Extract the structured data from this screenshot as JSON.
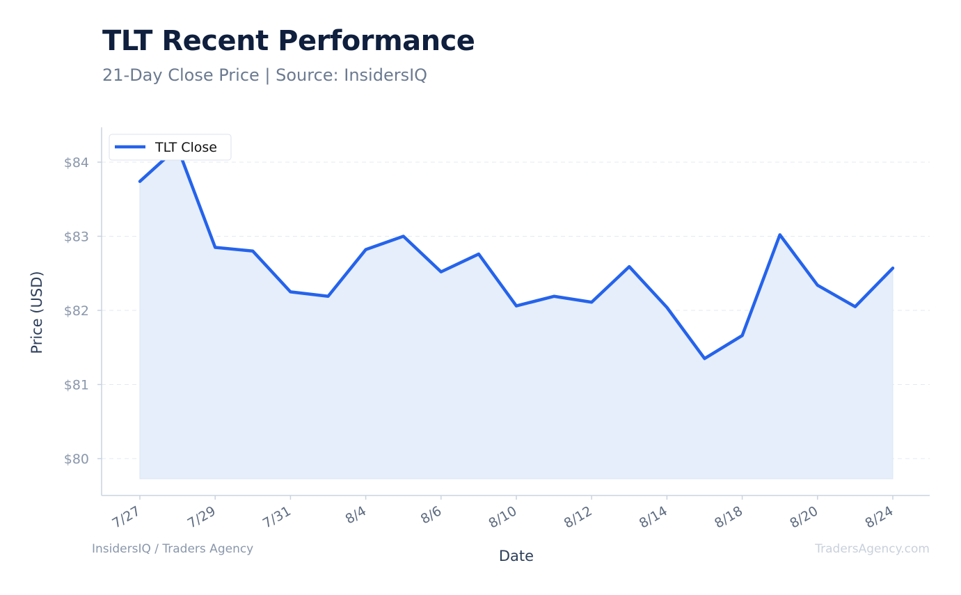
{
  "header": {
    "title": "TLT Recent Performance",
    "subtitle": "21-Day Close Price | Source: InsidersIQ"
  },
  "footer": {
    "left": "InsidersIQ / Traders Agency",
    "right": "TradersAgency.com"
  },
  "colors": {
    "line": "#2563eb",
    "fill": "#e6eefb",
    "axis": "#c9d3e0",
    "grid": "#e3e9f1",
    "tick_text": "#8a97ab",
    "axis_label": "#2c3e5a"
  },
  "chart_data": {
    "type": "area",
    "title": "TLT Recent Performance",
    "subtitle": "21-Day Close Price | Source: InsidersIQ",
    "xlabel": "Date",
    "ylabel": "Price (USD)",
    "ylim": [
      79.5,
      84.5
    ],
    "yticks": [
      80,
      81,
      82,
      83,
      84
    ],
    "ytick_labels": [
      "$80",
      "$81",
      "$82",
      "$83",
      "$84"
    ],
    "xtick_labels": [
      "7/27",
      "7/29",
      "7/31",
      "8/4",
      "8/6",
      "8/10",
      "8/12",
      "8/14",
      "8/18",
      "8/20",
      "8/24"
    ],
    "xtick_every": 2,
    "grid": true,
    "legend": "top-left",
    "series": [
      {
        "name": "TLT Close",
        "values": [
          83.74,
          84.2,
          82.85,
          82.8,
          82.25,
          82.19,
          82.82,
          83.0,
          82.52,
          82.76,
          82.06,
          82.19,
          82.11,
          82.59,
          82.04,
          81.35,
          81.66,
          83.02,
          82.34,
          82.05,
          82.57
        ]
      }
    ]
  }
}
